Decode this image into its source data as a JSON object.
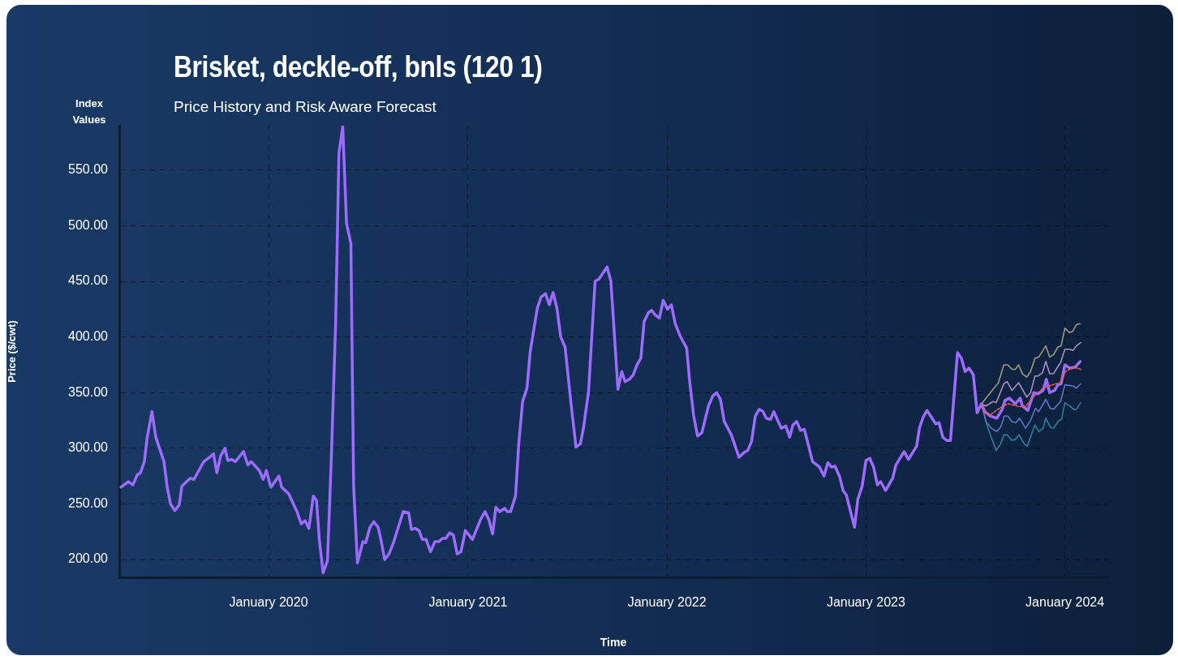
{
  "chart_data": {
    "type": "line",
    "title": "Brisket, deckle-off, bnls (120 1)",
    "subtitle": "Price History and Risk Aware Forecast",
    "xlabel": "Time",
    "ylabel": "Price ($/cwt)",
    "annotations": [
      "Index Values"
    ],
    "xlim": [
      "2019-04-02",
      "2024-03-19"
    ],
    "xticks": [
      {
        "value": "2020-01",
        "label": "January 2020"
      },
      {
        "value": "2021-01",
        "label": "January 2021"
      },
      {
        "value": "2022-01",
        "label": "January 2022"
      },
      {
        "value": "2023-01",
        "label": "January 2023"
      },
      {
        "value": "2024-01",
        "label": "January 2024"
      }
    ],
    "ylim": [
      184,
      590
    ],
    "yticks": [
      {
        "value": 200,
        "label": "200.00"
      },
      {
        "value": 250,
        "label": "250.00"
      },
      {
        "value": 300,
        "label": "300.00"
      },
      {
        "value": 350,
        "label": "350.00"
      },
      {
        "value": 400,
        "label": "400.00"
      },
      {
        "value": 450,
        "label": "450.00"
      },
      {
        "value": 500,
        "label": "500.00"
      },
      {
        "value": 550,
        "label": "550.00"
      }
    ],
    "grid": true,
    "legend": false,
    "marker": "none",
    "series": [
      {
        "color": "#9d6bff",
        "line_style": "solid",
        "x": [
          "2019-04-05",
          "2019-04-19",
          "2019-04-27",
          "2019-05-05",
          "2019-05-11",
          "2019-05-18",
          "2019-05-23",
          "2019-06-01",
          "2019-06-08",
          "2019-06-23",
          "2019-06-29",
          "2019-07-05",
          "2019-07-13",
          "2019-07-21",
          "2019-07-26",
          "2019-08-10",
          "2019-08-17",
          "2019-09-04",
          "2019-09-15",
          "2019-09-22",
          "2019-09-28",
          "2019-10-05",
          "2019-10-13",
          "2019-10-18",
          "2019-10-25",
          "2019-11-01",
          "2019-11-16",
          "2019-11-24",
          "2019-11-30",
          "2019-12-15",
          "2019-12-22",
          "2019-12-28",
          "2020-01-05",
          "2020-01-20",
          "2020-01-25",
          "2020-02-07",
          "2020-02-22",
          "2020-03-01",
          "2020-03-08",
          "2020-03-15",
          "2020-03-23",
          "2020-03-29",
          "2020-04-03",
          "2020-04-10",
          "2020-04-18",
          "2020-04-25",
          "2020-05-03",
          "2020-05-09",
          "2020-05-16",
          "2020-05-23",
          "2020-05-31",
          "2020-06-05",
          "2020-06-12",
          "2020-06-22",
          "2020-06-27",
          "2020-07-05",
          "2020-07-12",
          "2020-07-20",
          "2020-07-25",
          "2020-08-01",
          "2020-08-09",
          "2020-08-17",
          "2020-09-04",
          "2020-09-14",
          "2020-09-19",
          "2020-09-26",
          "2020-10-03",
          "2020-10-09",
          "2020-10-16",
          "2020-10-24",
          "2020-11-01",
          "2020-11-08",
          "2020-11-15",
          "2020-11-21",
          "2020-11-28",
          "2020-12-05",
          "2020-12-12",
          "2020-12-19",
          "2020-12-27",
          "2021-01-09",
          "2021-01-24",
          "2021-02-01",
          "2021-02-08",
          "2021-02-15",
          "2021-02-21",
          "2021-02-28",
          "2021-03-09",
          "2021-03-14",
          "2021-03-20",
          "2021-03-29",
          "2021-04-04",
          "2021-04-11",
          "2021-04-19",
          "2021-04-25",
          "2021-05-08",
          "2021-05-15",
          "2021-05-23",
          "2021-05-30",
          "2021-06-06",
          "2021-06-13",
          "2021-06-20",
          "2021-06-28",
          "2021-07-08",
          "2021-07-18",
          "2021-07-26",
          "2021-08-01",
          "2021-08-10",
          "2021-08-22",
          "2021-08-29",
          "2021-09-13",
          "2021-09-20",
          "2021-10-03",
          "2021-10-10",
          "2021-10-16",
          "2021-10-24",
          "2021-10-31",
          "2021-11-07",
          "2021-11-14",
          "2021-11-20",
          "2021-11-28",
          "2021-12-04",
          "2021-12-10",
          "2021-12-18",
          "2021-12-25",
          "2022-01-02",
          "2022-01-09",
          "2022-01-16",
          "2022-01-25",
          "2022-02-06",
          "2022-02-12",
          "2022-02-19",
          "2022-02-26",
          "2022-03-06",
          "2022-03-18",
          "2022-03-26",
          "2022-04-02",
          "2022-04-09",
          "2022-04-16",
          "2022-04-29",
          "2022-05-13",
          "2022-05-22",
          "2022-05-29",
          "2022-06-05",
          "2022-06-12",
          "2022-06-19",
          "2022-06-26",
          "2022-07-02",
          "2022-07-10",
          "2022-07-16",
          "2022-07-23",
          "2022-07-30",
          "2022-08-07",
          "2022-08-14",
          "2022-08-20",
          "2022-08-27",
          "2022-09-03",
          "2022-09-10",
          "2022-09-25",
          "2022-10-08",
          "2022-10-16",
          "2022-10-23",
          "2022-10-30",
          "2022-11-05",
          "2022-11-14",
          "2022-11-20",
          "2022-11-26",
          "2022-12-11",
          "2022-12-17",
          "2022-12-25",
          "2023-01-01",
          "2023-01-08",
          "2023-01-15",
          "2023-01-22",
          "2023-01-28",
          "2023-02-06",
          "2023-02-19",
          "2023-02-25",
          "2023-03-12",
          "2023-03-20",
          "2023-04-04",
          "2023-04-09",
          "2023-04-16",
          "2023-04-23",
          "2023-05-09",
          "2023-05-15",
          "2023-05-22",
          "2023-05-29",
          "2023-06-05",
          "2023-06-18",
          "2023-06-25",
          "2023-07-02",
          "2023-07-09",
          "2023-07-17",
          "2023-07-24",
          "2023-08-01",
          "2023-08-07",
          "2023-08-17",
          "2023-08-29",
          "2023-09-08",
          "2023-09-13",
          "2023-09-21",
          "2023-10-02",
          "2023-10-11",
          "2023-10-15",
          "2023-10-25",
          "2023-11-05",
          "2023-11-13",
          "2023-11-22",
          "2023-11-28",
          "2023-12-04",
          "2023-12-13",
          "2023-12-19",
          "2023-12-25",
          "2024-01-01",
          "2024-01-10",
          "2024-01-20",
          "2024-01-29"
        ],
        "values": [
          265,
          270,
          267,
          276,
          278,
          288,
          309,
          333,
          310,
          288,
          265,
          250,
          244,
          249,
          266,
          273,
          272,
          288,
          292,
          295,
          278,
          293,
          300,
          289,
          290,
          288,
          297,
          285,
          288,
          280,
          272,
          280,
          265,
          275,
          265,
          259,
          243,
          232,
          235,
          228,
          257,
          253,
          218,
          188,
          199,
          290,
          412,
          565,
          589,
          502,
          484,
          266,
          197,
          216,
          215,
          229,
          234,
          229,
          218,
          200,
          205,
          215,
          243,
          242,
          227,
          228,
          226,
          218,
          218,
          207,
          216,
          216,
          219,
          219,
          224,
          222,
          205,
          207,
          226,
          218,
          236,
          243,
          236,
          223,
          247,
          243,
          246,
          243,
          243,
          257,
          304,
          342,
          354,
          387,
          426,
          436,
          439,
          429,
          440,
          426,
          400,
          391,
          344,
          301,
          304,
          319,
          351,
          450,
          452,
          463,
          450,
          353,
          369,
          360,
          362,
          366,
          375,
          381,
          414,
          422,
          424,
          420,
          417,
          433,
          425,
          429,
          412,
          401,
          390,
          358,
          329,
          311,
          314,
          338,
          347,
          350,
          344,
          324,
          312,
          292,
          296,
          298,
          306,
          329,
          335,
          333,
          327,
          326,
          333,
          325,
          318,
          320,
          310,
          321,
          324,
          316,
          317,
          288,
          283,
          275,
          287,
          283,
          284,
          274,
          262,
          258,
          229,
          254,
          266,
          289,
          291,
          283,
          267,
          270,
          262,
          273,
          285,
          297,
          290,
          302,
          318,
          328,
          334,
          322,
          323,
          310,
          307,
          307,
          386,
          381,
          369,
          372,
          366,
          332,
          340,
          333,
          329,
          327,
          335,
          343,
          345,
          340,
          345,
          338,
          334,
          350,
          349,
          352,
          362,
          350,
          352,
          357,
          358,
          375,
          372,
          373,
          378
        ]
      },
      {
        "color": "#9c9a7c",
        "line_style": "solid",
        "x": [
          "2023-08-01",
          "2023-08-22",
          "2023-09-01",
          "2023-09-11",
          "2023-09-18",
          "2023-09-26",
          "2023-10-02",
          "2023-10-08",
          "2023-10-15",
          "2023-10-23",
          "2023-10-30",
          "2023-11-07",
          "2023-11-14",
          "2023-11-27",
          "2023-12-04",
          "2023-12-11",
          "2023-12-19",
          "2023-12-25",
          "2024-01-01",
          "2024-01-09",
          "2024-01-15",
          "2024-01-22",
          "2024-01-29"
        ],
        "values": [
          340,
          353,
          359,
          375,
          375,
          371,
          371,
          375,
          367,
          364,
          369,
          381,
          382,
          392,
          382,
          384,
          391,
          392,
          408,
          404,
          405,
          411,
          412
        ]
      },
      {
        "color": "#a98dc4",
        "line_style": "solid",
        "x": [
          "2023-08-01",
          "2023-08-09",
          "2023-08-22",
          "2023-08-28",
          "2023-09-11",
          "2023-09-17",
          "2023-09-26",
          "2023-10-08",
          "2023-10-23",
          "2023-10-30",
          "2023-11-07",
          "2023-11-13",
          "2023-11-21",
          "2023-11-27",
          "2023-12-04",
          "2023-12-11",
          "2023-12-24",
          "2024-01-01",
          "2024-01-10",
          "2024-01-16",
          "2024-01-22",
          "2024-01-30"
        ],
        "values": [
          340,
          338,
          342,
          341,
          358,
          360,
          352,
          359,
          346,
          350,
          365,
          365,
          368,
          378,
          367,
          367,
          377,
          389,
          389,
          388,
          392,
          395
        ]
      },
      {
        "color": "#e8604c",
        "line_style": "dashed",
        "x": [
          "2023-08-01",
          "2023-08-07",
          "2023-08-17",
          "2023-09-03",
          "2023-09-18",
          "2023-10-05",
          "2023-10-20",
          "2023-11-04",
          "2023-11-22",
          "2023-12-09",
          "2023-12-24",
          "2024-01-02",
          "2024-01-17",
          "2024-01-30"
        ],
        "values": [
          340,
          332,
          330,
          336,
          340,
          338,
          337,
          346,
          354,
          357,
          359,
          369,
          373,
          371
        ]
      },
      {
        "color": "#5c76c4",
        "line_style": "solid",
        "x": [
          "2023-08-01",
          "2023-08-09",
          "2023-08-19",
          "2023-08-29",
          "2023-09-05",
          "2023-09-12",
          "2023-09-18",
          "2023-09-26",
          "2023-10-03",
          "2023-10-10",
          "2023-10-21",
          "2023-10-30",
          "2023-11-08",
          "2023-11-14",
          "2023-11-27",
          "2023-12-05",
          "2023-12-11",
          "2023-12-24",
          "2024-01-01",
          "2024-01-16",
          "2024-01-22",
          "2024-01-30"
        ],
        "values": [
          340,
          324,
          318,
          315,
          319,
          329,
          329,
          324,
          323,
          327,
          318,
          325,
          336,
          333,
          344,
          336,
          335,
          342,
          357,
          356,
          354,
          358
        ]
      },
      {
        "color": "#2f7c9c",
        "line_style": "solid",
        "x": [
          "2023-08-01",
          "2023-08-12",
          "2023-08-21",
          "2023-08-28",
          "2023-09-05",
          "2023-09-11",
          "2023-09-17",
          "2023-09-26",
          "2023-10-02",
          "2023-10-09",
          "2023-10-18",
          "2023-10-24",
          "2023-11-07",
          "2023-11-14",
          "2023-11-22",
          "2023-11-27",
          "2023-12-05",
          "2023-12-11",
          "2023-12-21",
          "2023-12-26",
          "2024-01-01",
          "2024-01-10",
          "2024-01-17",
          "2024-01-22",
          "2024-01-30"
        ],
        "values": [
          340,
          319,
          307,
          298,
          304,
          312,
          312,
          307,
          308,
          312,
          304,
          302,
          321,
          315,
          318,
          327,
          319,
          318,
          325,
          326,
          341,
          338,
          335,
          335,
          341
        ]
      }
    ]
  }
}
